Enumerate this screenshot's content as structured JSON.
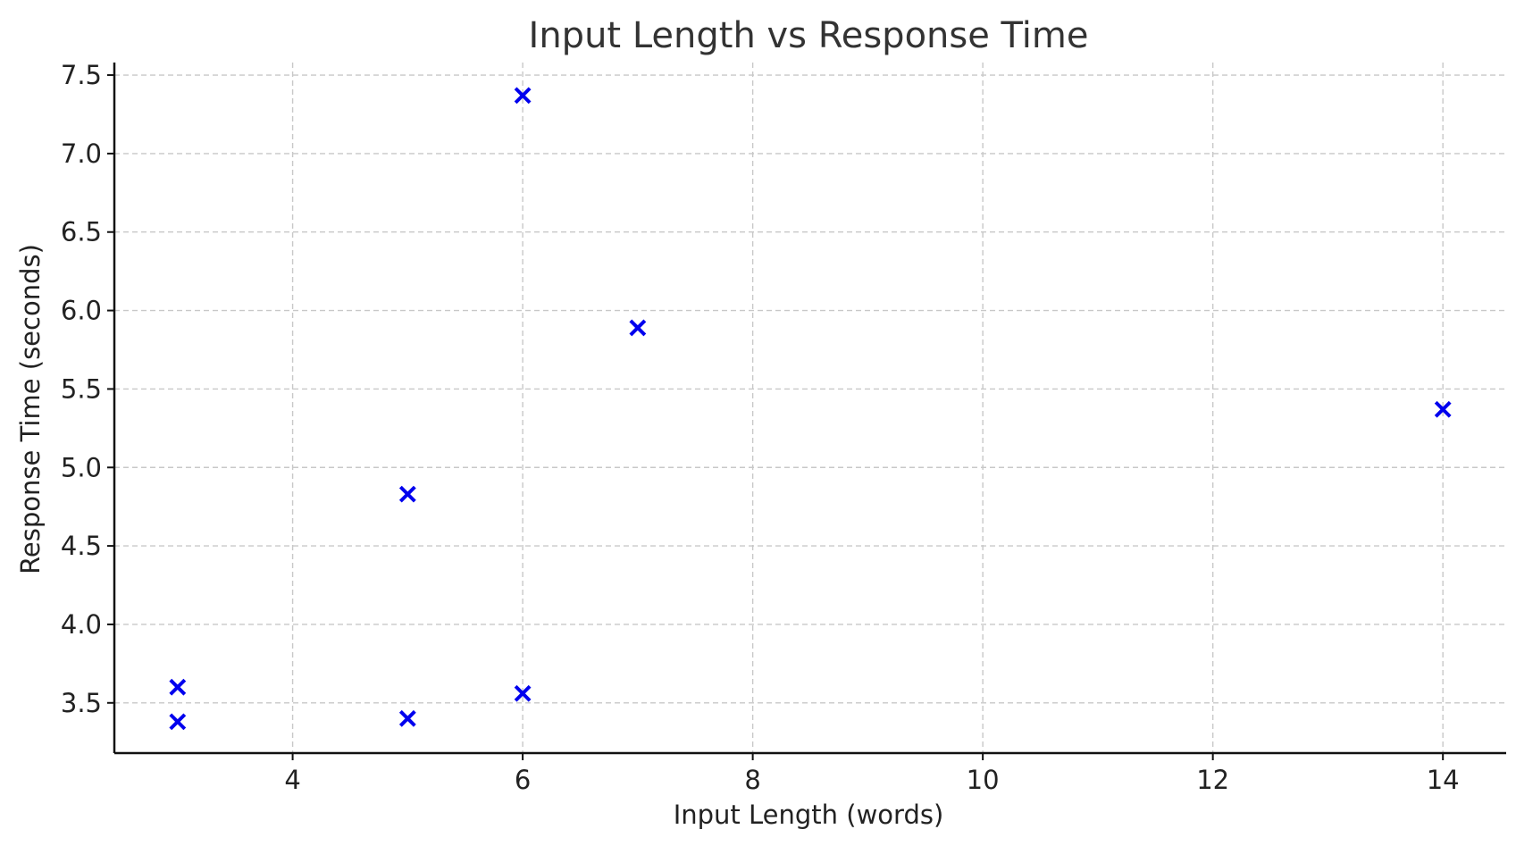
{
  "chart_data": {
    "type": "scatter",
    "title": "Input Length vs Response Time",
    "xlabel": "Input Length (words)",
    "ylabel": "Response Time (seconds)",
    "xlim": [
      2.45,
      14.55
    ],
    "ylim": [
      3.18,
      7.58
    ],
    "xticks": [
      4,
      6,
      8,
      10,
      12,
      14
    ],
    "yticks": [
      3.5,
      4.0,
      4.5,
      5.0,
      5.5,
      6.0,
      6.5,
      7.0,
      7.5
    ],
    "xtick_labels": [
      "4",
      "6",
      "8",
      "10",
      "12",
      "14"
    ],
    "ytick_labels": [
      "3.5",
      "4.0",
      "4.5",
      "5.0",
      "5.5",
      "6.0",
      "6.5",
      "7.0",
      "7.5"
    ],
    "grid": true,
    "marker": "x",
    "color": "#0000ee",
    "x": [
      3,
      3,
      5,
      5,
      6,
      6,
      7,
      14
    ],
    "y": [
      3.6,
      3.38,
      3.4,
      4.83,
      3.56,
      7.37,
      5.89,
      5.37
    ]
  }
}
